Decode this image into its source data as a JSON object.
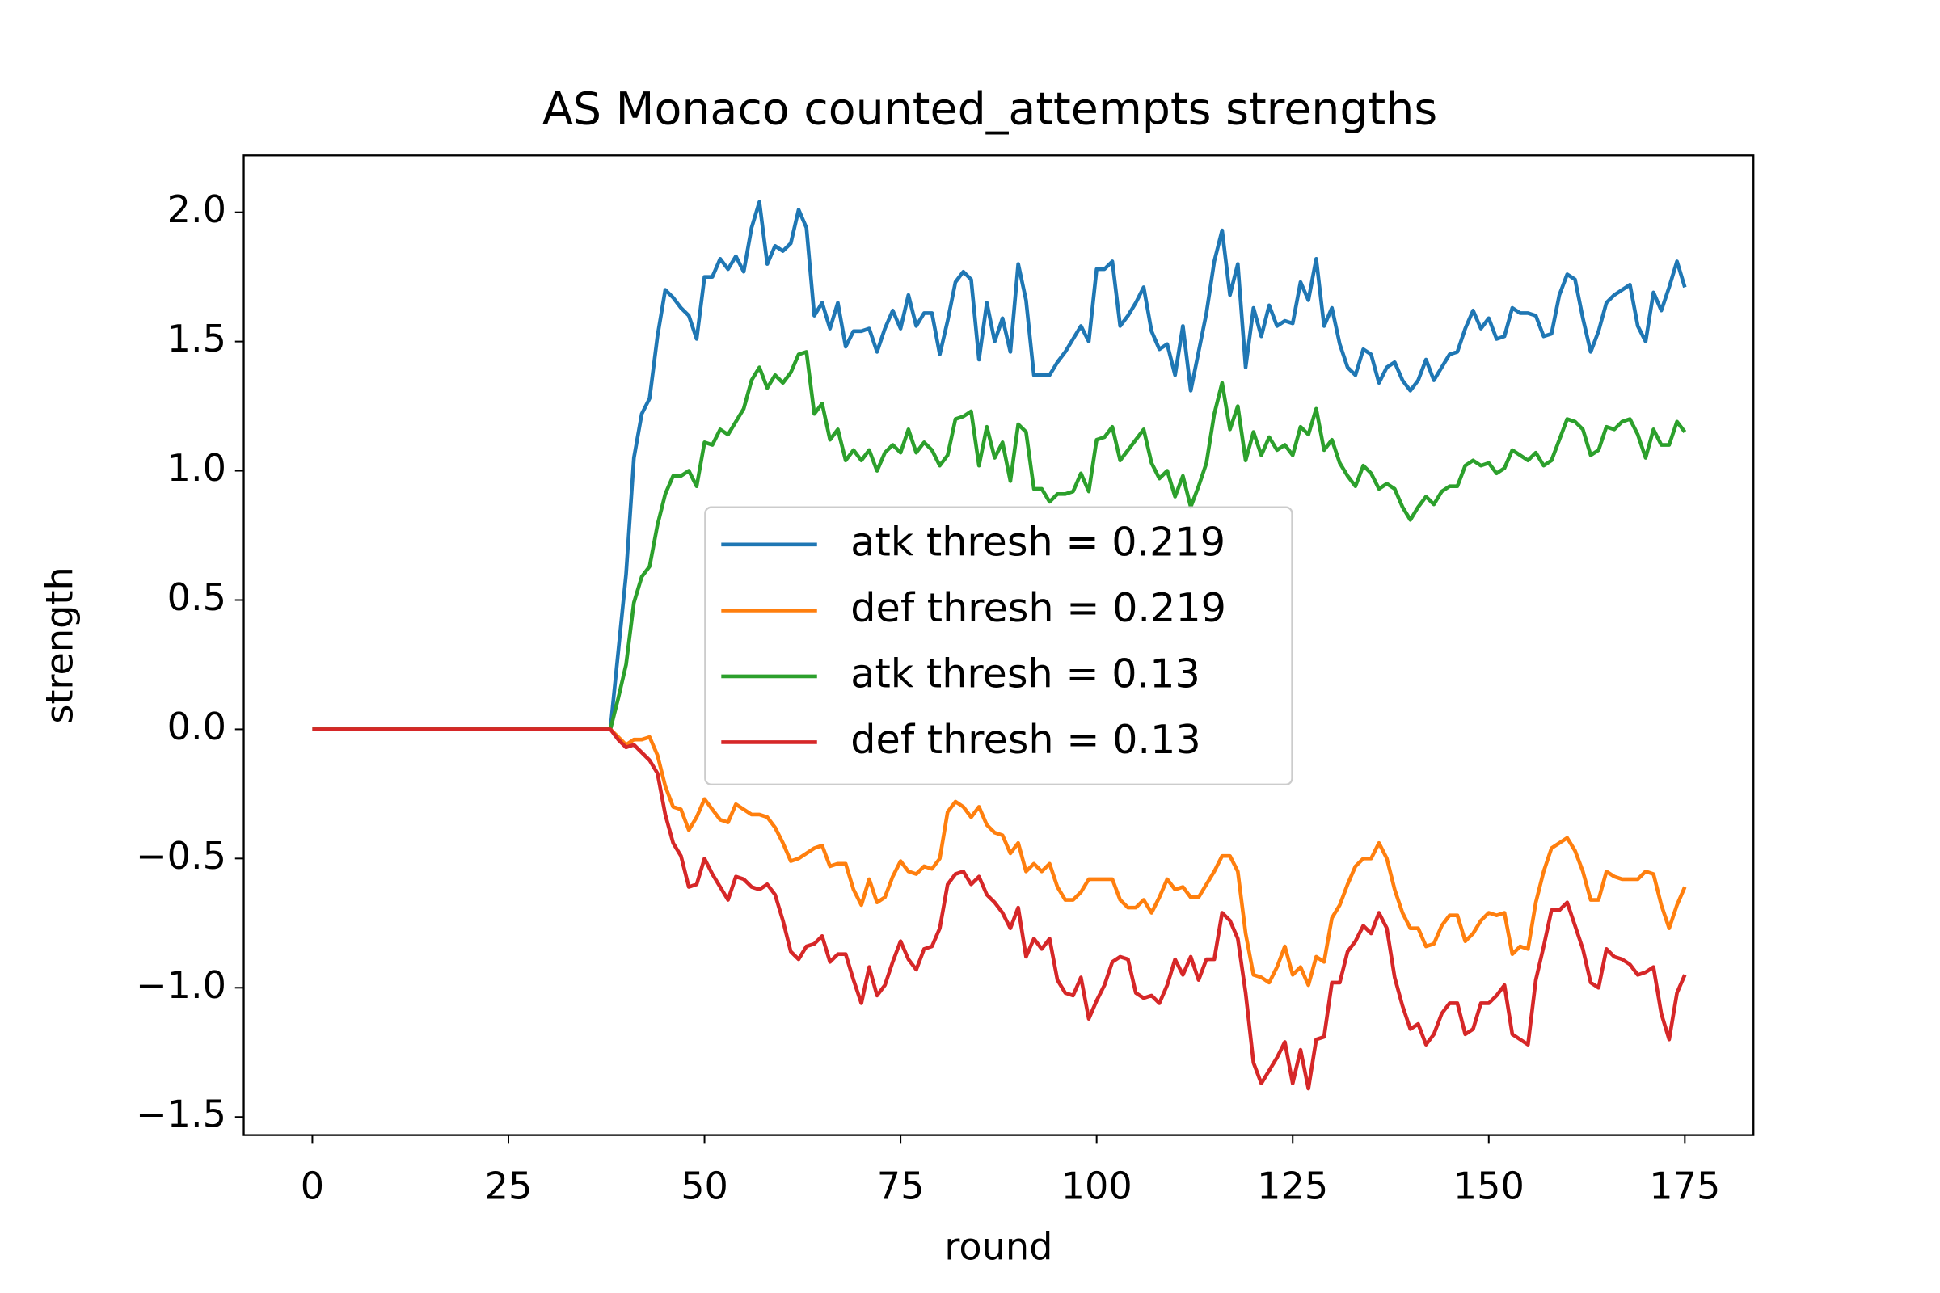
{
  "chart_data": {
    "type": "line",
    "title": "AS Monaco counted_attempts strengths",
    "xlabel": "round",
    "ylabel": "strength",
    "x": [
      0,
      1,
      2,
      3,
      4,
      5,
      6,
      7,
      8,
      9,
      10,
      11,
      12,
      13,
      14,
      15,
      16,
      17,
      18,
      19,
      20,
      21,
      22,
      23,
      24,
      25,
      26,
      27,
      28,
      29,
      30,
      31,
      32,
      33,
      34,
      35,
      36,
      37,
      38,
      39,
      40,
      41,
      42,
      43,
      44,
      45,
      46,
      47,
      48,
      49,
      50,
      51,
      52,
      53,
      54,
      55,
      56,
      57,
      58,
      59,
      60,
      61,
      62,
      63,
      64,
      65,
      66,
      67,
      68,
      69,
      70,
      71,
      72,
      73,
      74,
      75,
      76,
      77,
      78,
      79,
      80,
      81,
      82,
      83,
      84,
      85,
      86,
      87,
      88,
      89,
      90,
      91,
      92,
      93,
      94,
      95,
      96,
      97,
      98,
      99,
      100,
      101,
      102,
      103,
      104,
      105,
      106,
      107,
      108,
      109,
      110,
      111,
      112,
      113,
      114,
      115,
      116,
      117,
      118,
      119,
      120,
      121,
      122,
      123,
      124,
      125,
      126,
      127,
      128,
      129,
      130,
      131,
      132,
      133,
      134,
      135,
      136,
      137,
      138,
      139,
      140,
      141,
      142,
      143,
      144,
      145,
      146,
      147,
      148,
      149,
      150,
      151,
      152,
      153,
      154,
      155,
      156,
      157,
      158,
      159,
      160,
      161,
      162,
      163,
      164,
      165,
      166,
      167,
      168,
      169,
      170,
      171,
      172,
      173,
      174,
      175
    ],
    "series": [
      {
        "name": "atk thresh = 0.219",
        "color": "#1f77b4",
        "values": [
          0,
          0,
          0,
          0,
          0,
          0,
          0,
          0,
          0,
          0,
          0,
          0,
          0,
          0,
          0,
          0,
          0,
          0,
          0,
          0,
          0,
          0,
          0,
          0,
          0,
          0,
          0,
          0,
          0,
          0,
          0,
          0,
          0,
          0,
          0,
          0,
          0,
          0,
          0,
          0.3,
          0.6,
          1.05,
          1.22,
          1.28,
          1.52,
          1.7,
          1.67,
          1.63,
          1.6,
          1.51,
          1.75,
          1.75,
          1.82,
          1.78,
          1.83,
          1.77,
          1.94,
          2.04,
          1.8,
          1.87,
          1.85,
          1.88,
          2.01,
          1.94,
          1.6,
          1.65,
          1.55,
          1.65,
          1.48,
          1.54,
          1.54,
          1.55,
          1.46,
          1.55,
          1.62,
          1.55,
          1.68,
          1.56,
          1.61,
          1.61,
          1.45,
          1.58,
          1.73,
          1.77,
          1.74,
          1.43,
          1.65,
          1.5,
          1.59,
          1.46,
          1.8,
          1.66,
          1.37,
          1.37,
          1.37,
          1.42,
          1.46,
          1.51,
          1.56,
          1.5,
          1.78,
          1.78,
          1.81,
          1.56,
          1.6,
          1.65,
          1.71,
          1.54,
          1.47,
          1.49,
          1.37,
          1.56,
          1.31,
          1.46,
          1.61,
          1.81,
          1.93,
          1.68,
          1.8,
          1.4,
          1.63,
          1.52,
          1.64,
          1.56,
          1.58,
          1.57,
          1.73,
          1.66,
          1.82,
          1.56,
          1.63,
          1.49,
          1.4,
          1.37,
          1.47,
          1.45,
          1.34,
          1.4,
          1.42,
          1.35,
          1.31,
          1.35,
          1.43,
          1.35,
          1.4,
          1.45,
          1.46,
          1.55,
          1.62,
          1.55,
          1.59,
          1.51,
          1.52,
          1.63,
          1.61,
          1.61,
          1.6,
          1.52,
          1.53,
          1.68,
          1.76,
          1.74,
          1.59,
          1.46,
          1.54,
          1.65,
          1.68,
          1.7,
          1.72,
          1.56,
          1.5,
          1.69,
          1.62,
          1.71,
          1.81,
          1.71
        ]
      },
      {
        "name": "def thresh = 0.219",
        "color": "#ff7f0e",
        "values": [
          0,
          0,
          0,
          0,
          0,
          0,
          0,
          0,
          0,
          0,
          0,
          0,
          0,
          0,
          0,
          0,
          0,
          0,
          0,
          0,
          0,
          0,
          0,
          0,
          0,
          0,
          0,
          0,
          0,
          0,
          0,
          0,
          0,
          0,
          0,
          0,
          0,
          0,
          0,
          -0.03,
          -0.06,
          -0.04,
          -0.04,
          -0.03,
          -0.1,
          -0.22,
          -0.3,
          -0.31,
          -0.39,
          -0.34,
          -0.27,
          -0.31,
          -0.35,
          -0.36,
          -0.29,
          -0.31,
          -0.33,
          -0.33,
          -0.34,
          -0.38,
          -0.44,
          -0.51,
          -0.5,
          -0.48,
          -0.46,
          -0.45,
          -0.53,
          -0.52,
          -0.52,
          -0.62,
          -0.68,
          -0.58,
          -0.67,
          -0.65,
          -0.57,
          -0.51,
          -0.55,
          -0.56,
          -0.53,
          -0.54,
          -0.5,
          -0.32,
          -0.28,
          -0.3,
          -0.34,
          -0.3,
          -0.37,
          -0.4,
          -0.41,
          -0.48,
          -0.44,
          -0.55,
          -0.52,
          -0.55,
          -0.52,
          -0.61,
          -0.66,
          -0.66,
          -0.63,
          -0.58,
          -0.58,
          -0.58,
          -0.58,
          -0.66,
          -0.69,
          -0.69,
          -0.66,
          -0.71,
          -0.65,
          -0.58,
          -0.62,
          -0.61,
          -0.65,
          -0.65,
          -0.6,
          -0.55,
          -0.49,
          -0.49,
          -0.55,
          -0.79,
          -0.95,
          -0.96,
          -0.98,
          -0.92,
          -0.84,
          -0.95,
          -0.92,
          -0.99,
          -0.88,
          -0.9,
          -0.73,
          -0.68,
          -0.6,
          -0.53,
          -0.5,
          -0.5,
          -0.44,
          -0.5,
          -0.62,
          -0.71,
          -0.77,
          -0.77,
          -0.84,
          -0.83,
          -0.76,
          -0.72,
          -0.72,
          -0.82,
          -0.79,
          -0.74,
          -0.71,
          -0.72,
          -0.71,
          -0.87,
          -0.84,
          -0.85,
          -0.67,
          -0.55,
          -0.46,
          -0.44,
          -0.42,
          -0.47,
          -0.55,
          -0.66,
          -0.66,
          -0.55,
          -0.57,
          -0.58,
          -0.58,
          -0.58,
          -0.55,
          -0.56,
          -0.68,
          -0.77,
          -0.68,
          -0.61
        ]
      },
      {
        "name": "atk thresh = 0.13",
        "color": "#2ca02c",
        "values": [
          0,
          0,
          0,
          0,
          0,
          0,
          0,
          0,
          0,
          0,
          0,
          0,
          0,
          0,
          0,
          0,
          0,
          0,
          0,
          0,
          0,
          0,
          0,
          0,
          0,
          0,
          0,
          0,
          0,
          0,
          0,
          0,
          0,
          0,
          0,
          0,
          0,
          0,
          0,
          0.12,
          0.25,
          0.49,
          0.59,
          0.63,
          0.79,
          0.91,
          0.98,
          0.98,
          1.0,
          0.94,
          1.11,
          1.1,
          1.16,
          1.14,
          1.19,
          1.24,
          1.35,
          1.4,
          1.32,
          1.37,
          1.34,
          1.38,
          1.45,
          1.46,
          1.22,
          1.26,
          1.12,
          1.16,
          1.04,
          1.08,
          1.04,
          1.08,
          1.0,
          1.07,
          1.1,
          1.07,
          1.16,
          1.07,
          1.11,
          1.08,
          1.02,
          1.06,
          1.2,
          1.21,
          1.23,
          1.02,
          1.17,
          1.05,
          1.11,
          0.96,
          1.18,
          1.15,
          0.93,
          0.93,
          0.88,
          0.91,
          0.91,
          0.92,
          0.99,
          0.92,
          1.12,
          1.13,
          1.17,
          1.04,
          1.08,
          1.12,
          1.16,
          1.03,
          0.97,
          1.0,
          0.9,
          0.98,
          0.86,
          0.94,
          1.03,
          1.22,
          1.34,
          1.16,
          1.25,
          1.04,
          1.15,
          1.06,
          1.13,
          1.08,
          1.1,
          1.06,
          1.17,
          1.14,
          1.24,
          1.08,
          1.12,
          1.03,
          0.98,
          0.94,
          1.02,
          0.99,
          0.93,
          0.95,
          0.93,
          0.86,
          0.81,
          0.86,
          0.9,
          0.87,
          0.92,
          0.94,
          0.94,
          1.02,
          1.04,
          1.02,
          1.03,
          0.99,
          1.01,
          1.08,
          1.06,
          1.04,
          1.07,
          1.02,
          1.04,
          1.12,
          1.2,
          1.19,
          1.16,
          1.06,
          1.08,
          1.17,
          1.16,
          1.19,
          1.2,
          1.14,
          1.05,
          1.16,
          1.1,
          1.1,
          1.19,
          1.15
        ]
      },
      {
        "name": "def thresh = 0.13",
        "color": "#d62728",
        "values": [
          0,
          0,
          0,
          0,
          0,
          0,
          0,
          0,
          0,
          0,
          0,
          0,
          0,
          0,
          0,
          0,
          0,
          0,
          0,
          0,
          0,
          0,
          0,
          0,
          0,
          0,
          0,
          0,
          0,
          0,
          0,
          0,
          0,
          0,
          0,
          0,
          0,
          0,
          0,
          -0.04,
          -0.07,
          -0.06,
          -0.09,
          -0.12,
          -0.17,
          -0.33,
          -0.44,
          -0.49,
          -0.61,
          -0.6,
          -0.5,
          -0.56,
          -0.61,
          -0.66,
          -0.57,
          -0.58,
          -0.61,
          -0.62,
          -0.6,
          -0.64,
          -0.74,
          -0.86,
          -0.89,
          -0.84,
          -0.83,
          -0.8,
          -0.9,
          -0.87,
          -0.87,
          -0.97,
          -1.06,
          -0.92,
          -1.03,
          -0.99,
          -0.9,
          -0.82,
          -0.89,
          -0.93,
          -0.85,
          -0.84,
          -0.77,
          -0.6,
          -0.56,
          -0.55,
          -0.6,
          -0.57,
          -0.64,
          -0.67,
          -0.71,
          -0.77,
          -0.69,
          -0.88,
          -0.81,
          -0.85,
          -0.81,
          -0.97,
          -1.02,
          -1.03,
          -0.96,
          -1.12,
          -1.05,
          -0.99,
          -0.9,
          -0.88,
          -0.89,
          -1.02,
          -1.04,
          -1.03,
          -1.06,
          -0.99,
          -0.89,
          -0.95,
          -0.88,
          -0.97,
          -0.89,
          -0.89,
          -0.71,
          -0.74,
          -0.81,
          -1.02,
          -1.29,
          -1.37,
          -1.32,
          -1.27,
          -1.21,
          -1.37,
          -1.24,
          -1.39,
          -1.2,
          -1.19,
          -0.98,
          -0.98,
          -0.86,
          -0.82,
          -0.76,
          -0.79,
          -0.71,
          -0.77,
          -0.96,
          -1.07,
          -1.16,
          -1.14,
          -1.22,
          -1.18,
          -1.1,
          -1.06,
          -1.06,
          -1.18,
          -1.16,
          -1.06,
          -1.06,
          -1.03,
          -0.99,
          -1.18,
          -1.2,
          -1.22,
          -0.97,
          -0.84,
          -0.7,
          -0.7,
          -0.67,
          -0.76,
          -0.85,
          -0.98,
          -1.0,
          -0.85,
          -0.88,
          -0.89,
          -0.91,
          -0.95,
          -0.94,
          -0.92,
          -1.1,
          -1.2,
          -1.02,
          -0.95
        ]
      }
    ],
    "xlim": [
      -8.75,
      183.75
    ],
    "xticks": [
      0,
      25,
      50,
      75,
      100,
      125,
      150,
      175
    ],
    "ylim": [
      -1.57,
      2.22
    ],
    "yticks": [
      {
        "value": -1.5,
        "label": "−1.5"
      },
      {
        "value": -1,
        "label": "−1.0"
      },
      {
        "value": -0.5,
        "label": "−0.5"
      },
      {
        "value": 0,
        "label": "0.0"
      },
      0.5,
      {
        "value": 1,
        "label": "1.0"
      },
      1.5,
      {
        "value": 2,
        "label": "2.0"
      }
    ],
    "legend": "center"
  }
}
